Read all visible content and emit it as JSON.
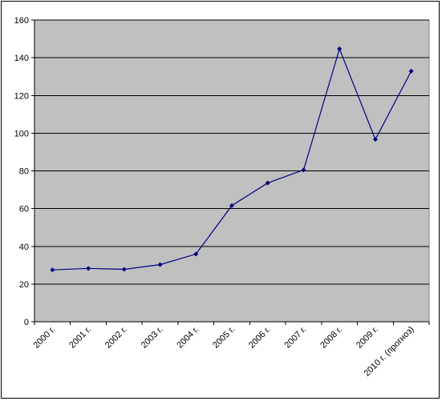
{
  "chart_data": {
    "type": "line",
    "title": "",
    "xlabel": "",
    "ylabel": "",
    "categories": [
      "2000 г.",
      "2001 г.",
      "2002 г.",
      "2003 г.",
      "2004 г.",
      "2005 г.",
      "2006 г.",
      "2007 г.",
      "2008 г.",
      "2009 г.",
      "2010 г. (прогноз)"
    ],
    "series": [
      {
        "values": [
          27.5,
          28.3,
          27.8,
          30.3,
          35.9,
          61.6,
          73.6,
          80.5,
          144.7,
          96.7,
          132.9
        ]
      }
    ],
    "ylim": [
      0,
      160
    ],
    "yticks": [
      0,
      20,
      40,
      60,
      80,
      100,
      120,
      140,
      160
    ],
    "grid": true,
    "legend": "none",
    "colors": {
      "plot_background": "#c0c0c0",
      "line": "#000080",
      "marker": "#000080",
      "gridline": "#000000"
    }
  }
}
